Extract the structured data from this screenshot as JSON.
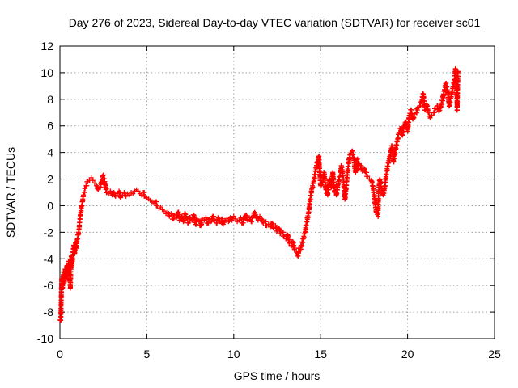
{
  "chart_data": {
    "type": "scatter",
    "title": "Day 276 of 2023, Sidereal Day-to-day VTEC variation (SDTVAR) for receiver sc01",
    "xlabel": "GPS time / hours",
    "ylabel": "SDTVAR / TECUs",
    "xlim": [
      0,
      25
    ],
    "ylim": [
      -10,
      12
    ],
    "x_ticks": [
      0,
      5,
      10,
      15,
      20,
      25
    ],
    "y_ticks": [
      -10,
      -8,
      -6,
      -4,
      -2,
      0,
      2,
      4,
      6,
      8,
      10,
      12
    ],
    "x_tick_labels": [
      "0",
      "5",
      "10",
      "15",
      "20",
      "25"
    ],
    "y_tick_labels": [
      "-10",
      "-8",
      "-6",
      "-4",
      "-2",
      "0",
      "2",
      "4",
      "6",
      "8",
      "10",
      "12"
    ],
    "grid": true,
    "marker": "plus",
    "color": "#ff0000",
    "series": [
      {
        "name": "sc01",
        "points": [
          [
            0.0,
            -8.6
          ],
          [
            0.05,
            -8.6
          ],
          [
            0.1,
            -5.5
          ],
          [
            0.15,
            -6.2
          ],
          [
            0.2,
            -5.0
          ],
          [
            0.25,
            -5.8
          ],
          [
            0.3,
            -4.8
          ],
          [
            0.35,
            -5.3
          ],
          [
            0.4,
            -4.5
          ],
          [
            0.45,
            -5.5
          ],
          [
            0.5,
            -4.2
          ],
          [
            0.55,
            -5.0
          ],
          [
            0.6,
            -6.2
          ],
          [
            0.62,
            -5.5
          ],
          [
            0.65,
            -3.8
          ],
          [
            0.7,
            -4.5
          ],
          [
            0.75,
            -3.5
          ],
          [
            0.8,
            -3.0
          ],
          [
            0.85,
            -3.6
          ],
          [
            0.9,
            -2.8
          ],
          [
            0.95,
            -3.2
          ],
          [
            1.0,
            -2.5
          ],
          [
            1.05,
            -2.2
          ],
          [
            1.1,
            -1.8
          ],
          [
            1.15,
            -1.0
          ],
          [
            1.2,
            -0.5
          ],
          [
            1.25,
            0.0
          ],
          [
            1.3,
            0.3
          ],
          [
            1.35,
            0.8
          ],
          [
            1.4,
            1.0
          ],
          [
            1.45,
            1.3
          ],
          [
            1.5,
            1.5
          ],
          [
            1.6,
            1.8
          ],
          [
            1.7,
            1.9
          ],
          [
            1.8,
            2.1
          ],
          [
            1.9,
            1.9
          ],
          [
            2.0,
            1.7
          ],
          [
            2.1,
            1.5
          ],
          [
            2.2,
            1.2
          ],
          [
            2.3,
            1.4
          ],
          [
            2.4,
            1.8
          ],
          [
            2.5,
            2.3
          ],
          [
            2.6,
            1.6
          ],
          [
            2.7,
            1.0
          ],
          [
            2.8,
            0.9
          ],
          [
            2.9,
            1.1
          ],
          [
            3.0,
            0.8
          ],
          [
            3.1,
            1.0
          ],
          [
            3.2,
            0.7
          ],
          [
            3.3,
            0.9
          ],
          [
            3.4,
            1.1
          ],
          [
            3.5,
            0.6
          ],
          [
            3.6,
            0.8
          ],
          [
            3.7,
            1.0
          ],
          [
            3.8,
            0.7
          ],
          [
            3.9,
            0.9
          ],
          [
            4.0,
            0.8
          ],
          [
            4.1,
            1.0
          ],
          [
            4.2,
            0.9
          ],
          [
            4.3,
            1.1
          ],
          [
            4.4,
            1.2
          ],
          [
            4.5,
            1.1
          ],
          [
            4.6,
            0.9
          ],
          [
            4.7,
            0.8
          ],
          [
            4.8,
            1.0
          ],
          [
            4.9,
            0.7
          ],
          [
            5.0,
            0.6
          ],
          [
            5.1,
            0.5
          ],
          [
            5.2,
            0.4
          ],
          [
            5.3,
            0.3
          ],
          [
            5.4,
            0.2
          ],
          [
            5.5,
            0.3
          ],
          [
            5.6,
            0.0
          ],
          [
            5.7,
            -0.2
          ],
          [
            5.8,
            -0.1
          ],
          [
            5.9,
            -0.3
          ],
          [
            6.0,
            -0.4
          ],
          [
            6.1,
            -0.6
          ],
          [
            6.2,
            -0.5
          ],
          [
            6.3,
            -0.8
          ],
          [
            6.4,
            -0.6
          ],
          [
            6.5,
            -1.0
          ],
          [
            6.6,
            -0.7
          ],
          [
            6.7,
            -0.9
          ],
          [
            6.8,
            -0.5
          ],
          [
            6.9,
            -1.1
          ],
          [
            7.0,
            -0.8
          ],
          [
            7.1,
            -1.2
          ],
          [
            7.2,
            -0.6
          ],
          [
            7.3,
            -1.0
          ],
          [
            7.4,
            -1.3
          ],
          [
            7.5,
            -0.9
          ],
          [
            7.6,
            -1.1
          ],
          [
            7.7,
            -0.7
          ],
          [
            7.8,
            -1.4
          ],
          [
            7.9,
            -1.0
          ],
          [
            8.0,
            -1.2
          ],
          [
            8.1,
            -1.5
          ],
          [
            8.2,
            -1.0
          ],
          [
            8.3,
            -1.1
          ],
          [
            8.4,
            -0.9
          ],
          [
            8.5,
            -1.3
          ],
          [
            8.6,
            -1.0
          ],
          [
            8.7,
            -1.2
          ],
          [
            8.8,
            -0.8
          ],
          [
            8.9,
            -1.1
          ],
          [
            9.0,
            -1.3
          ],
          [
            9.1,
            -0.9
          ],
          [
            9.2,
            -1.2
          ],
          [
            9.3,
            -1.0
          ],
          [
            9.4,
            -1.4
          ],
          [
            9.5,
            -1.1
          ],
          [
            9.6,
            -1.0
          ],
          [
            9.7,
            -1.2
          ],
          [
            9.8,
            -0.9
          ],
          [
            9.9,
            -1.1
          ],
          [
            10.0,
            -0.8
          ],
          [
            10.1,
            -1.0
          ],
          [
            10.2,
            -1.2
          ],
          [
            10.3,
            -1.1
          ],
          [
            10.4,
            -0.9
          ],
          [
            10.5,
            -1.3
          ],
          [
            10.6,
            -1.0
          ],
          [
            10.7,
            -0.7
          ],
          [
            10.8,
            -1.1
          ],
          [
            10.9,
            -0.9
          ],
          [
            11.0,
            -1.2
          ],
          [
            11.1,
            -0.8
          ],
          [
            11.2,
            -0.5
          ],
          [
            11.3,
            -0.9
          ],
          [
            11.4,
            -1.1
          ],
          [
            11.5,
            -0.8
          ],
          [
            11.6,
            -1.0
          ],
          [
            11.7,
            -1.3
          ],
          [
            11.8,
            -1.2
          ],
          [
            11.9,
            -1.5
          ],
          [
            12.0,
            -1.4
          ],
          [
            12.1,
            -1.6
          ],
          [
            12.2,
            -1.3
          ],
          [
            12.3,
            -1.7
          ],
          [
            12.4,
            -1.5
          ],
          [
            12.5,
            -1.9
          ],
          [
            12.6,
            -1.7
          ],
          [
            12.7,
            -2.1
          ],
          [
            12.8,
            -2.0
          ],
          [
            12.9,
            -2.3
          ],
          [
            13.0,
            -2.5
          ],
          [
            13.1,
            -2.2
          ],
          [
            13.2,
            -2.8
          ],
          [
            13.3,
            -3.0
          ],
          [
            13.4,
            -2.7
          ],
          [
            13.5,
            -3.3
          ],
          [
            13.6,
            -3.5
          ],
          [
            13.7,
            -3.8
          ],
          [
            13.75,
            -3.2
          ],
          [
            13.8,
            -3.4
          ],
          [
            13.9,
            -3.0
          ],
          [
            14.0,
            -2.5
          ],
          [
            14.1,
            -2.0
          ],
          [
            14.2,
            -1.2
          ],
          [
            14.3,
            -0.6
          ],
          [
            14.4,
            0.5
          ],
          [
            14.5,
            1.3
          ],
          [
            14.6,
            1.8
          ],
          [
            14.7,
            2.6
          ],
          [
            14.8,
            3.2
          ],
          [
            14.9,
            3.7
          ],
          [
            14.95,
            2.3
          ],
          [
            15.0,
            1.5
          ],
          [
            15.1,
            1.8
          ],
          [
            15.2,
            2.5
          ],
          [
            15.3,
            1.2
          ],
          [
            15.4,
            0.8
          ],
          [
            15.5,
            2.0
          ],
          [
            15.6,
            1.4
          ],
          [
            15.7,
            2.5
          ],
          [
            15.8,
            1.0
          ],
          [
            15.9,
            0.8
          ],
          [
            16.0,
            1.6
          ],
          [
            16.1,
            2.3
          ],
          [
            16.2,
            3.0
          ],
          [
            16.3,
            2.0
          ],
          [
            16.4,
            0.5
          ],
          [
            16.5,
            1.8
          ],
          [
            16.6,
            3.2
          ],
          [
            16.7,
            3.8
          ],
          [
            16.8,
            4.1
          ],
          [
            16.9,
            3.6
          ],
          [
            17.0,
            2.5
          ],
          [
            17.1,
            3.5
          ],
          [
            17.2,
            2.8
          ],
          [
            17.3,
            3.0
          ],
          [
            17.4,
            2.6
          ],
          [
            17.5,
            2.8
          ],
          [
            17.6,
            2.5
          ],
          [
            17.7,
            2.2
          ],
          [
            17.8,
            2.0
          ],
          [
            17.9,
            1.9
          ],
          [
            18.0,
            1.5
          ],
          [
            18.1,
            0.5
          ],
          [
            18.2,
            -0.5
          ],
          [
            18.3,
            -0.8
          ],
          [
            18.35,
            1.5
          ],
          [
            18.4,
            2.0
          ],
          [
            18.5,
            1.3
          ],
          [
            18.6,
            0.8
          ],
          [
            18.7,
            1.5
          ],
          [
            18.8,
            2.6
          ],
          [
            18.9,
            3.2
          ],
          [
            19.0,
            3.8
          ],
          [
            19.1,
            4.5
          ],
          [
            19.2,
            3.3
          ],
          [
            19.3,
            4.2
          ],
          [
            19.4,
            4.8
          ],
          [
            19.5,
            5.5
          ],
          [
            19.6,
            5.8
          ],
          [
            19.7,
            5.3
          ],
          [
            19.8,
            6.0
          ],
          [
            19.9,
            6.3
          ],
          [
            20.0,
            5.6
          ],
          [
            20.1,
            6.8
          ],
          [
            20.2,
            7.2
          ],
          [
            20.3,
            6.5
          ],
          [
            20.4,
            6.9
          ],
          [
            20.5,
            7.0
          ],
          [
            20.6,
            7.4
          ],
          [
            20.7,
            7.5
          ],
          [
            20.8,
            7.8
          ],
          [
            20.9,
            8.4
          ],
          [
            21.0,
            7.2
          ],
          [
            21.1,
            7.6
          ],
          [
            21.2,
            7.0
          ],
          [
            21.3,
            6.6
          ],
          [
            21.4,
            6.8
          ],
          [
            21.5,
            7.0
          ],
          [
            21.6,
            7.3
          ],
          [
            21.7,
            7.5
          ],
          [
            21.8,
            7.1
          ],
          [
            21.9,
            7.4
          ],
          [
            22.0,
            7.9
          ],
          [
            22.1,
            8.6
          ],
          [
            22.2,
            9.2
          ],
          [
            22.3,
            8.5
          ],
          [
            22.4,
            7.5
          ],
          [
            22.5,
            8.2
          ],
          [
            22.6,
            8.8
          ],
          [
            22.7,
            9.5
          ],
          [
            22.75,
            10.3
          ],
          [
            22.8,
            9.8
          ],
          [
            22.85,
            7.2
          ],
          [
            22.9,
            10.1
          ]
        ]
      }
    ]
  }
}
